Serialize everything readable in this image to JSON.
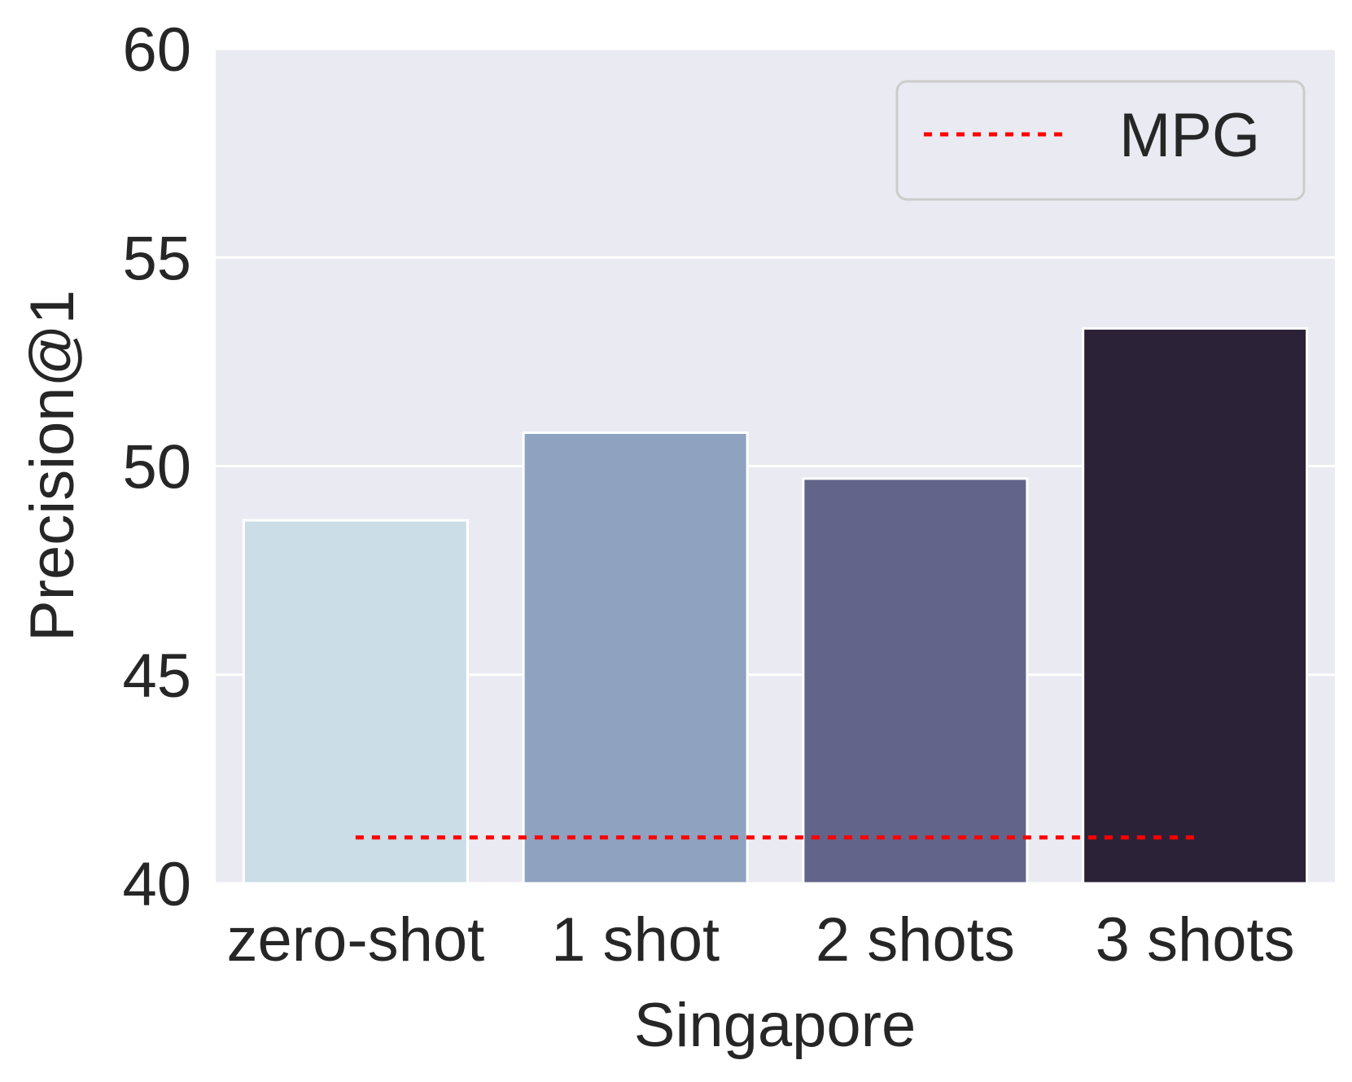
{
  "chart_data": {
    "type": "bar",
    "title": "",
    "xlabel": "Singapore",
    "ylabel": "Precision@1",
    "categories": [
      "zero-shot",
      "1 shot",
      "2 shots",
      "3 shots"
    ],
    "values": [
      48.7,
      50.8,
      49.7,
      53.3
    ],
    "bar_colors": [
      "#cbdde6",
      "#8fa2bf",
      "#626489",
      "#2c2237"
    ],
    "ylim": [
      40,
      60
    ],
    "yticks": [
      40,
      45,
      50,
      55,
      60
    ],
    "grid": true,
    "reference_line": {
      "name": "MPG",
      "value": 41.1,
      "color": "#ff0000",
      "style": "dotted"
    },
    "legend": {
      "position": "top-right",
      "entries": [
        "MPG"
      ]
    },
    "colors": {
      "plot_background": "#eaeaf2",
      "grid": "#ffffff",
      "text": "#262626"
    }
  }
}
